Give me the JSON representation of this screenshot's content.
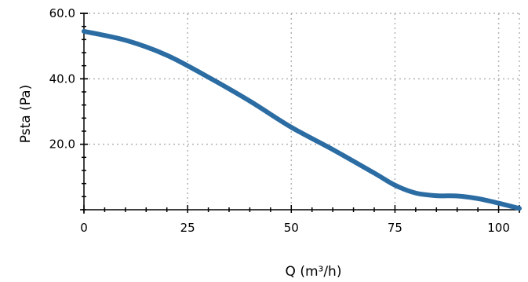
{
  "chart_data": {
    "type": "line",
    "xlabel": "Q (m³/h)",
    "ylabel": "Psta (Pa)",
    "xlim": [
      0,
      105
    ],
    "ylim": [
      0,
      60
    ],
    "x_ticks": [
      0,
      25,
      50,
      75,
      100
    ],
    "x_tick_labels": [
      "0",
      "25",
      "50",
      "75",
      "100"
    ],
    "y_ticks": [
      20,
      40,
      60
    ],
    "y_tick_labels": [
      "20.0",
      "40.0",
      "60.0"
    ],
    "x_minor_step": 5,
    "y_minor_step": 4,
    "grid": true,
    "series": [
      {
        "color": "#2b6ca3",
        "x": [
          0,
          10,
          20,
          30,
          40,
          50,
          60,
          70,
          75,
          80,
          85,
          90,
          95,
          100,
          105
        ],
        "y": [
          54.5,
          51.8,
          47.2,
          40.5,
          33.2,
          25.2,
          18.4,
          11.2,
          7.5,
          5.1,
          4.3,
          4.2,
          3.4,
          2.0,
          0.4
        ]
      }
    ]
  }
}
